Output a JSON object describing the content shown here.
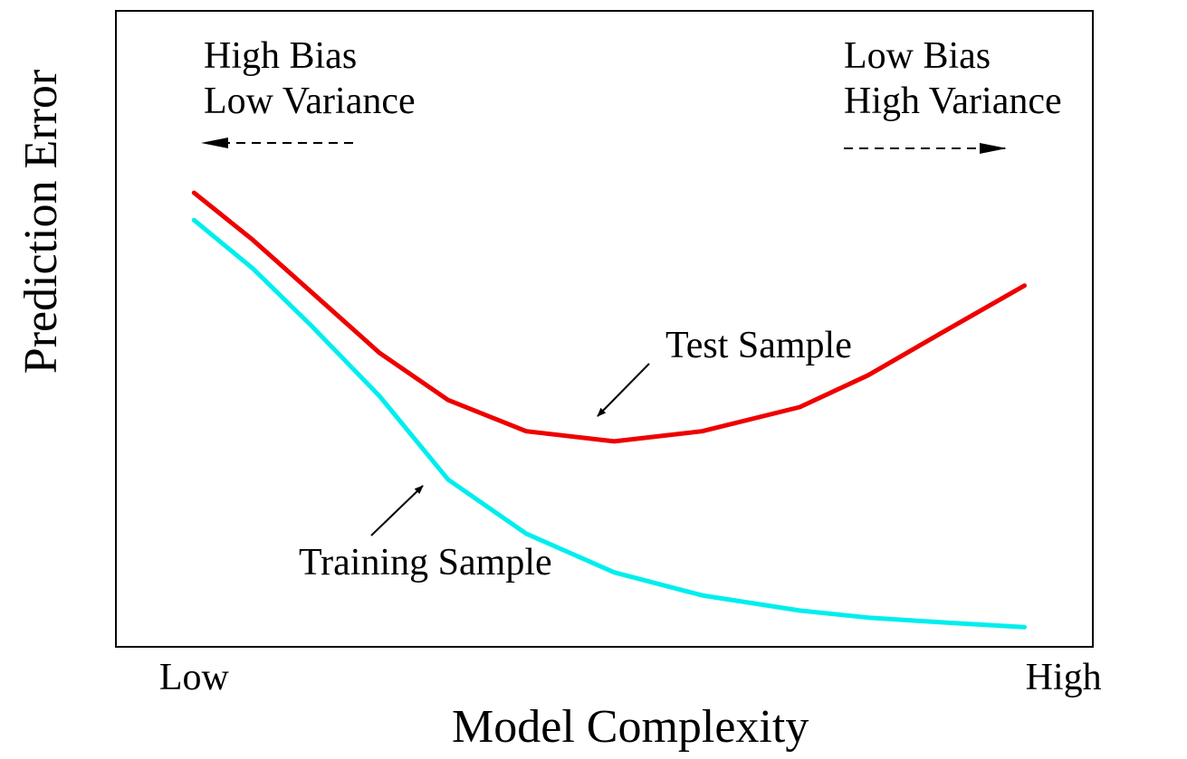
{
  "chart_data": {
    "type": "line",
    "x_label": "Model Complexity",
    "y_label": "Prediction Error",
    "x": [
      8,
      14,
      20,
      27,
      34,
      42,
      51,
      60,
      70,
      77,
      85,
      93
    ],
    "series": [
      {
        "name": "Test Sample",
        "color": "#ee0000",
        "values": [
          71.4,
          64.0,
          55.8,
          46.2,
          38.8,
          33.9,
          32.3,
          33.9,
          37.7,
          42.7,
          49.8,
          56.8
        ]
      },
      {
        "name": "Training Sample",
        "color": "#00eeee",
        "values": [
          67.1,
          59.5,
          50.5,
          39.4,
          26.3,
          17.8,
          11.7,
          8.1,
          5.7,
          4.6,
          3.8,
          3.1
        ]
      }
    ],
    "xlim": [
      0,
      100
    ],
    "ylim": [
      0,
      100
    ],
    "xticks": [
      {
        "value": 8,
        "label": "Low"
      },
      {
        "value": 97,
        "label": "High"
      }
    ],
    "annotations": [
      {
        "text": [
          "High Bias",
          "Low Variance"
        ]
      },
      {
        "text": [
          "Low Bias",
          "High Variance"
        ]
      }
    ]
  }
}
